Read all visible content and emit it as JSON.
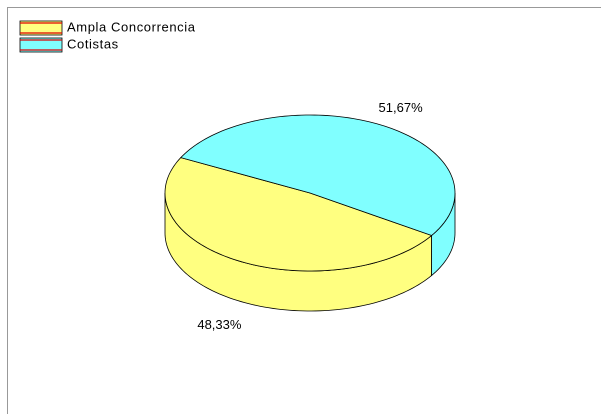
{
  "chart_data": {
    "type": "pie",
    "categories": [
      "Ampla Concorrencia",
      "Cotistas"
    ],
    "values": [
      48.33,
      51.67
    ],
    "value_labels": [
      "48,33%",
      "51,67%"
    ],
    "colors": [
      "#ffff80",
      "#80ffff"
    ]
  }
}
